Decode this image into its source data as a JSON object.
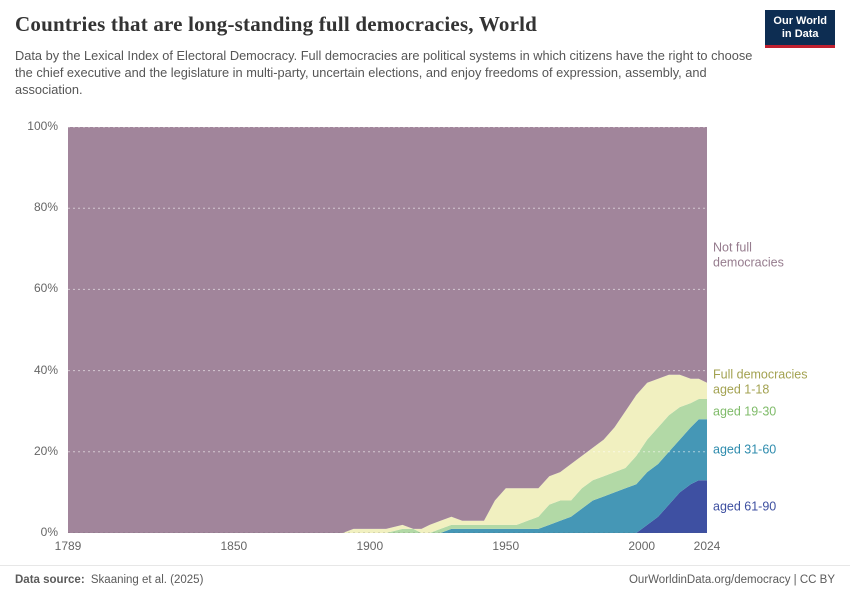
{
  "header": {
    "title": "Countries that are long-standing full democracies, World",
    "subtitle": "Data by the Lexical Index of Electoral Democracy. Full democracies are political systems in which citizens have the right to choose the chief executive and the legislature in multi-party, uncertain elections, and enjoy freedoms of expression, assembly, and association.",
    "logo": {
      "line1": "Our World",
      "line2": "in Data",
      "bg": "#0d2d52",
      "accent": "#c0202f"
    }
  },
  "footer": {
    "source_label": "Data source:",
    "source_value": "Skaaning et al. (2025)",
    "right": "OurWorldinData.org/democracy | CC BY"
  },
  "chart_data": {
    "type": "area",
    "stacked": true,
    "title": "Countries that are long-standing full democracies, World",
    "unit": "%",
    "grid": true,
    "x_range": [
      1789,
      2024
    ],
    "y_range": [
      0,
      100
    ],
    "xticks": [
      1789,
      1850,
      1900,
      1950,
      2000,
      2024
    ],
    "yticks": [
      0,
      20,
      40,
      60,
      80,
      100
    ],
    "years": [
      1789,
      1850,
      1890,
      1894,
      1900,
      1906,
      1912,
      1916,
      1919,
      1922,
      1926,
      1930,
      1934,
      1938,
      1942,
      1946,
      1950,
      1954,
      1958,
      1962,
      1966,
      1970,
      1974,
      1978,
      1982,
      1986,
      1990,
      1994,
      1998,
      2002,
      2006,
      2010,
      2014,
      2018,
      2021,
      2024
    ],
    "series": [
      {
        "id": "aged-61-90",
        "label": "aged 61-90",
        "color": "#3e50a2",
        "label_color": "#3d4fa0",
        "label_offset": 0,
        "values": [
          0,
          0,
          0,
          0,
          0,
          0,
          0,
          0,
          0,
          0,
          0,
          0,
          0,
          0,
          0,
          0,
          0,
          0,
          0,
          0,
          0,
          0,
          0,
          0,
          0,
          0,
          0,
          0,
          0,
          2,
          4,
          7,
          10,
          12,
          13,
          13
        ]
      },
      {
        "id": "aged-31-60",
        "label": "aged 31-60",
        "color": "#4597b6",
        "label_color": "#2d8bad",
        "label_offset": 0,
        "values": [
          0,
          0,
          0,
          0,
          0,
          0,
          0,
          0,
          0,
          0,
          0,
          1,
          1,
          1,
          1,
          1,
          1,
          1,
          1,
          1,
          2,
          3,
          4,
          6,
          8,
          9,
          10,
          11,
          12,
          13,
          13,
          13,
          13,
          14,
          15,
          15
        ]
      },
      {
        "id": "aged-19-30",
        "label": "aged 19-30",
        "color": "#b2d9a6",
        "label_color": "#7fbb69",
        "label_offset": 3,
        "values": [
          0,
          0,
          0,
          0,
          0,
          0,
          1,
          1,
          0,
          0,
          1,
          1,
          1,
          1,
          1,
          1,
          1,
          1,
          2,
          3,
          5,
          5,
          4,
          5,
          5,
          5,
          5,
          5,
          7,
          8,
          9,
          9,
          8,
          6,
          5,
          5
        ]
      },
      {
        "id": "aged-1-18",
        "label": "Full democracies aged 1-18",
        "color": "#f1f0c0",
        "label_color": "#a3a251",
        "label_offset": -9,
        "values": [
          0,
          0,
          0,
          1,
          1,
          1,
          1,
          0,
          1,
          2,
          2,
          2,
          1,
          1,
          1,
          6,
          9,
          9,
          8,
          7,
          7,
          7,
          9,
          8,
          8,
          9,
          11,
          14,
          15,
          14,
          12,
          10,
          8,
          6,
          5,
          4
        ]
      },
      {
        "id": "not-full-democracies",
        "label": "Not full democracies",
        "color": "#a1859b",
        "label_color": "#967c8e",
        "label_offset": 0,
        "values": "remainder"
      }
    ]
  }
}
